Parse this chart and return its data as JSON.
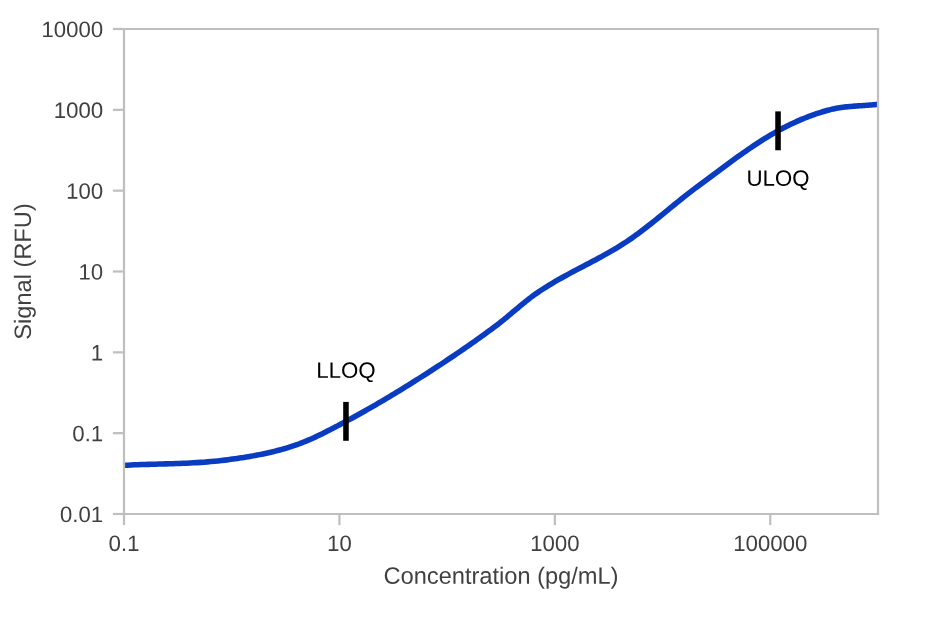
{
  "chart_data": {
    "type": "line",
    "xlabel": "Concentration (pg/mL)",
    "ylabel": "Signal (RFU)",
    "log": "xy",
    "grid": false,
    "marker": "none",
    "line_style": "solid",
    "xlim": [
      0.1,
      1000000
    ],
    "xticks": [
      0.1,
      10,
      1000,
      100000
    ],
    "ylim": [
      0.01,
      10000
    ],
    "yticks": [
      0.01,
      0.1,
      1,
      10,
      100,
      1000,
      10000
    ],
    "series": [
      {
        "color": "#0a3cc2",
        "x": [
          0.1,
          0.93,
          3.9,
          11.5,
          65,
          280,
          680,
          4900,
          21000,
          118000,
          355000,
          1000000
        ],
        "values": [
          0.04,
          0.047,
          0.071,
          0.14,
          0.55,
          2.1,
          5.4,
          24.6,
          112,
          550,
          1000,
          1170
        ]
      }
    ],
    "annotations": [
      {
        "text": "LLOQ",
        "x": 11.5,
        "y": 0.14
      },
      {
        "text": "ULOQ",
        "x": 118000,
        "y": 550
      }
    ]
  }
}
